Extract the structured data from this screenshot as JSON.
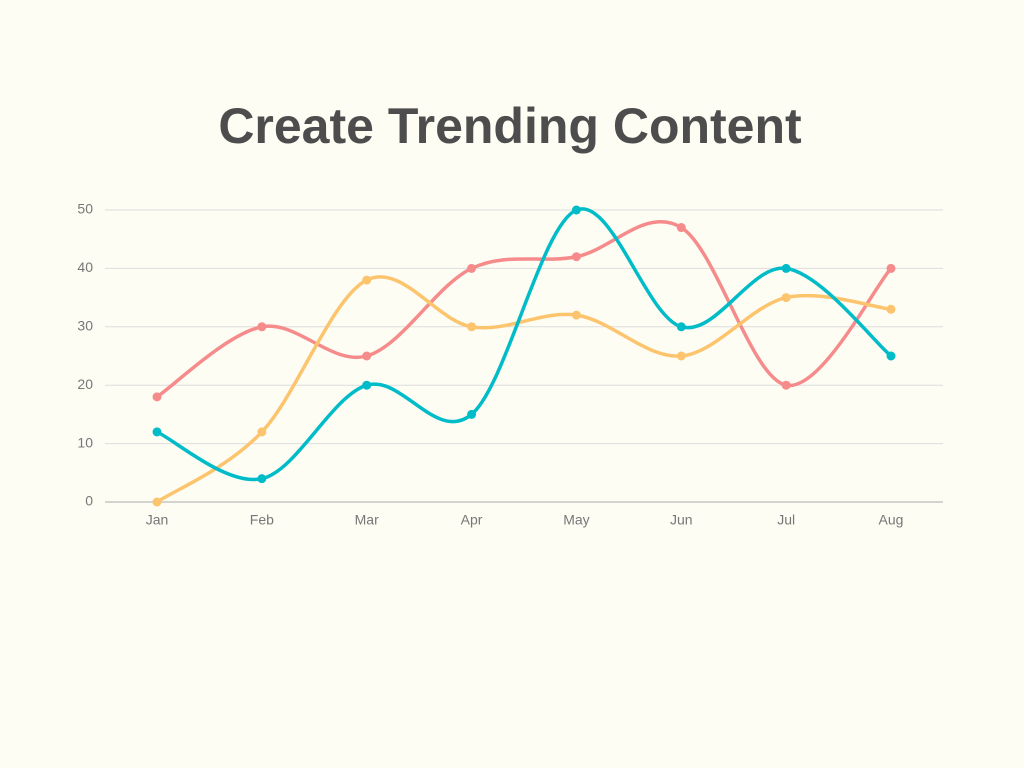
{
  "chart_data": {
    "type": "line",
    "title": "Create Trending Content",
    "categories": [
      "Jan",
      "Feb",
      "Mar",
      "Apr",
      "May",
      "Jun",
      "Jul",
      "Aug"
    ],
    "series": [
      {
        "color": "#f68b8b",
        "values": [
          18,
          30,
          25,
          40,
          42,
          47,
          20,
          40
        ]
      },
      {
        "color": "#fdc46e",
        "values": [
          0,
          12,
          38,
          30,
          32,
          25,
          35,
          33
        ]
      },
      {
        "color": "#00bcc8",
        "values": [
          12,
          4,
          20,
          15,
          50,
          30,
          40,
          25
        ]
      }
    ],
    "ylim": [
      0,
      50
    ],
    "yticks": [
      0,
      10,
      20,
      30,
      40,
      50
    ],
    "grid": true,
    "smooth": true
  }
}
